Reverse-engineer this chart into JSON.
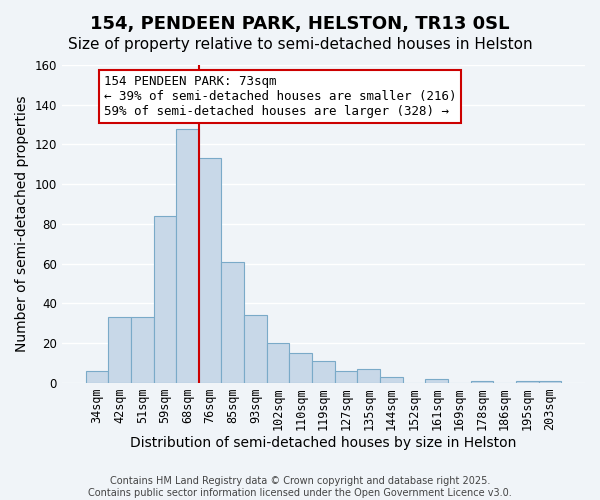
{
  "title": "154, PENDEEN PARK, HELSTON, TR13 0SL",
  "subtitle": "Size of property relative to semi-detached houses in Helston",
  "xlabel": "Distribution of semi-detached houses by size in Helston",
  "ylabel": "Number of semi-detached properties",
  "footer_line1": "Contains HM Land Registry data © Crown copyright and database right 2025.",
  "footer_line2": "Contains public sector information licensed under the Open Government Licence v3.0.",
  "bar_labels": [
    "34sqm",
    "42sqm",
    "51sqm",
    "59sqm",
    "68sqm",
    "76sqm",
    "85sqm",
    "93sqm",
    "102sqm",
    "110sqm",
    "119sqm",
    "127sqm",
    "135sqm",
    "144sqm",
    "152sqm",
    "161sqm",
    "169sqm",
    "178sqm",
    "186sqm",
    "195sqm",
    "203sqm"
  ],
  "bar_values": [
    6,
    33,
    33,
    84,
    128,
    113,
    61,
    34,
    20,
    15,
    11,
    6,
    7,
    3,
    0,
    2,
    0,
    1,
    0,
    1,
    1
  ],
  "bar_color": "#c8d8e8",
  "bar_edge_color": "#7aaac8",
  "ylim": [
    0,
    160
  ],
  "yticks": [
    0,
    20,
    40,
    60,
    80,
    100,
    120,
    140,
    160
  ],
  "vline_x_idx": 4,
  "vline_color": "#cc0000",
  "annotation_title": "154 PENDEEN PARK: 73sqm",
  "annotation_line1": "← 39% of semi-detached houses are smaller (216)",
  "annotation_line2": "59% of semi-detached houses are larger (328) →",
  "annotation_box_color": "#ffffff",
  "annotation_box_edge_color": "#cc0000",
  "bg_color": "#f0f4f8",
  "grid_color": "#ffffff",
  "title_fontsize": 13,
  "subtitle_fontsize": 11,
  "axis_label_fontsize": 10,
  "tick_fontsize": 8.5,
  "annotation_fontsize": 9
}
